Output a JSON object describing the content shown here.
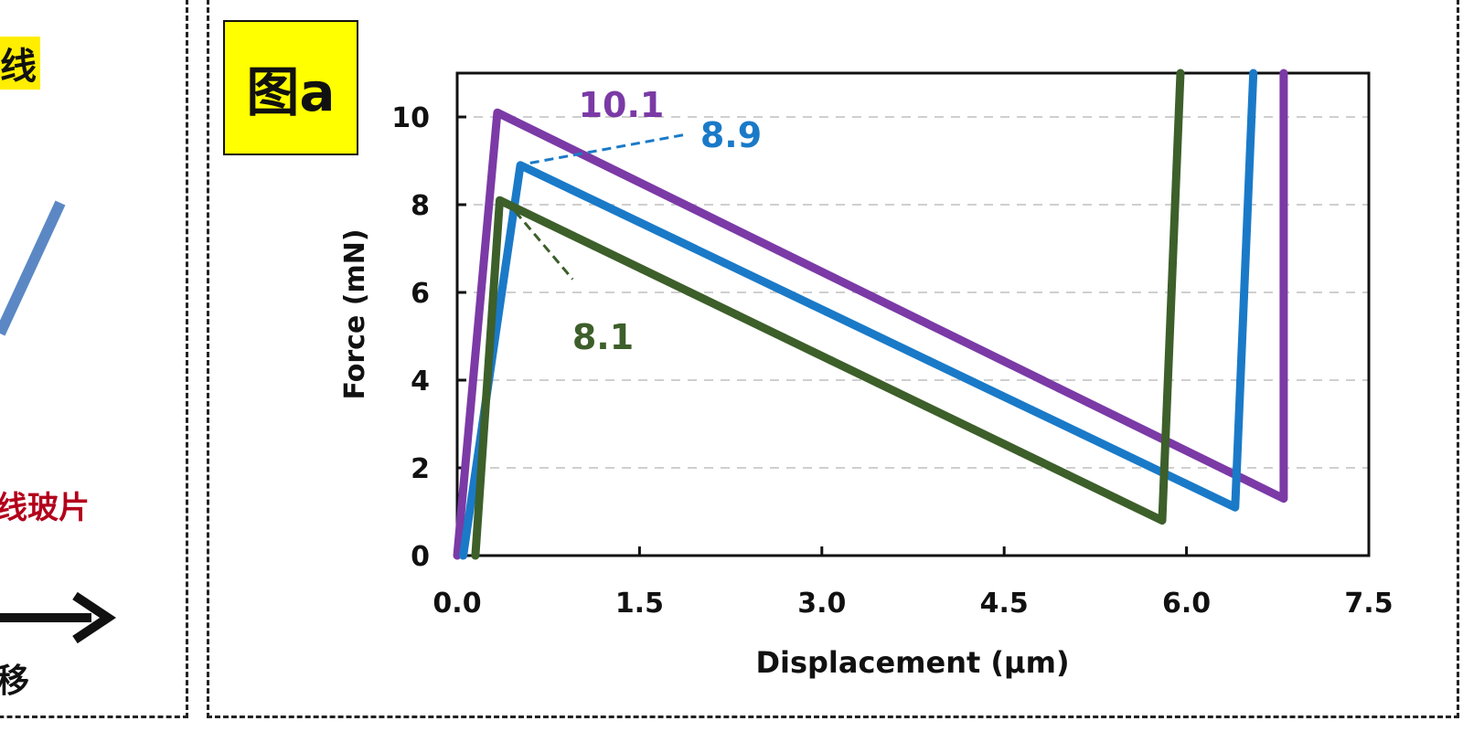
{
  "left_panel": {
    "top_text": "线",
    "middle_text": "线玻片",
    "bottom_text": "移"
  },
  "badge": {
    "label": "图a"
  },
  "colors": {
    "purple": "#7b3aa6",
    "blue": "#1a7ac8",
    "green": "#3d5f2a",
    "badge_bg": "#ffff00",
    "left_line": "#5b88c4",
    "left_red_text": "#b3001b"
  },
  "chart_data": {
    "type": "line",
    "title": "",
    "xlabel": "Displacement (μm)",
    "ylabel": "Force (mN)",
    "xlim": [
      0,
      7.5
    ],
    "ylim": [
      0,
      11
    ],
    "xticks": [
      "0.0",
      "1.5",
      "3.0",
      "4.5",
      "6.0",
      "7.5"
    ],
    "yticks": [
      "0",
      "2",
      "4",
      "6",
      "8",
      "10"
    ],
    "grid": "horizontal dashed",
    "series": [
      {
        "color": "purple",
        "points": [
          [
            0,
            0
          ],
          [
            0.33,
            10.1
          ],
          [
            6.8,
            1.3
          ],
          [
            6.8,
            11
          ]
        ]
      },
      {
        "color": "blue",
        "points": [
          [
            0.05,
            0
          ],
          [
            0.52,
            8.9
          ],
          [
            6.4,
            1.1
          ],
          [
            6.55,
            11
          ]
        ]
      },
      {
        "color": "green",
        "points": [
          [
            0.15,
            0
          ],
          [
            0.35,
            8.1
          ],
          [
            5.8,
            0.8
          ],
          [
            5.95,
            11
          ]
        ]
      }
    ],
    "annotations": [
      {
        "text": "10.1",
        "color": "purple"
      },
      {
        "text": "8.9",
        "color": "blue"
      },
      {
        "text": "8.1",
        "color": "green"
      }
    ]
  }
}
